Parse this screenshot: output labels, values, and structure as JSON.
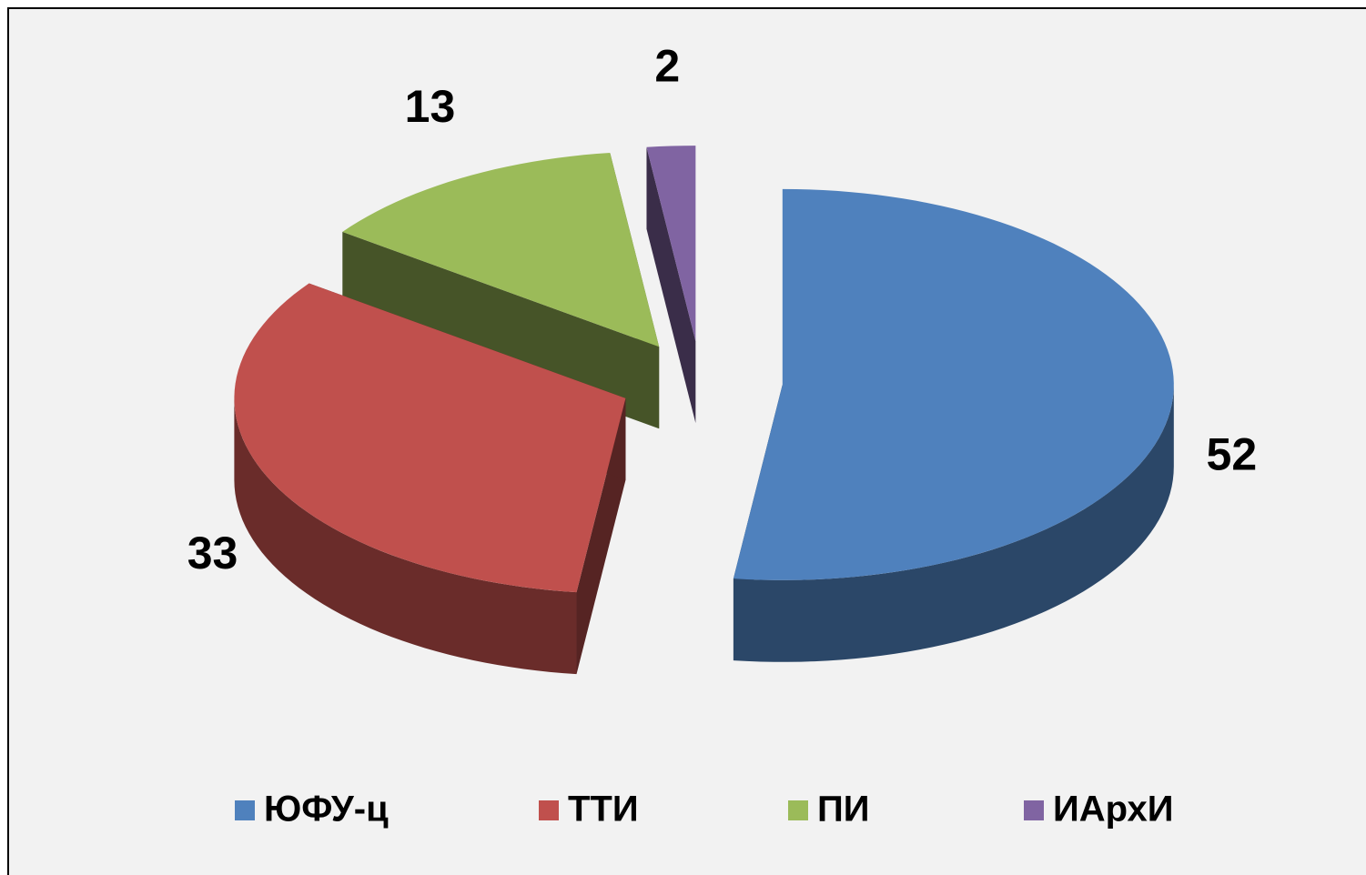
{
  "chart_data": {
    "type": "pie",
    "categories": [
      "ЮФУ-ц",
      "ТТИ",
      "ПИ",
      "ИАрхИ"
    ],
    "values": [
      52,
      33,
      13,
      2
    ],
    "colors": [
      "#4f81bd",
      "#c0504d",
      "#9bbb59",
      "#8064a2"
    ],
    "legend": "bottom"
  }
}
